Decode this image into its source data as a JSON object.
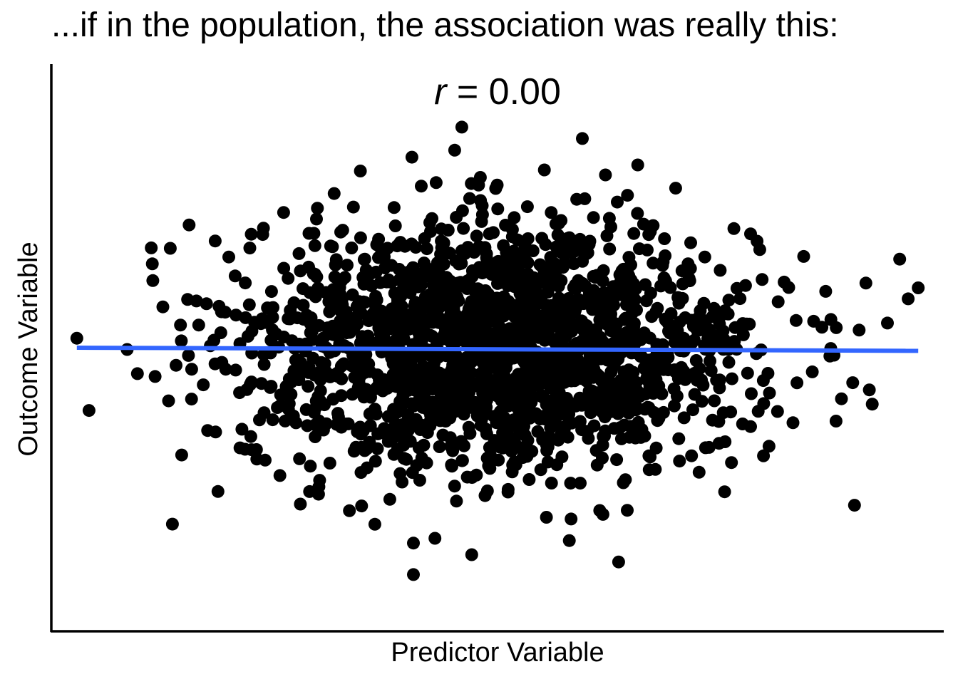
{
  "title": "...if in the population, the association was really this:",
  "chart_data": {
    "type": "scatter",
    "annotation": {
      "variable": "r",
      "text": " = 0.00"
    },
    "xlabel": "Predictor Variable",
    "ylabel": "Outcome Variable",
    "x_ticks": "none",
    "y_ticks": "none",
    "grid": false,
    "legend": "none",
    "n_points": 2000,
    "correlation": 0.0,
    "xlim": [
      -3.5,
      3.5
    ],
    "ylim": [
      -4.5,
      4.5
    ],
    "regression_line": {
      "x": [
        -3.3,
        3.3
      ],
      "y": [
        0.0,
        -0.05
      ]
    },
    "point_color": "#000000",
    "line_color": "#3366ff",
    "sample_points": [
      {
        "x": -0.28,
        "y": 3.5
      },
      {
        "x": -0.66,
        "y": -3.6
      },
      {
        "x": -0.66,
        "y": -3.1
      },
      {
        "x": -3.3,
        "y": 0.15
      },
      {
        "x": 3.3,
        "y": 0.95
      },
      {
        "x": 1.1,
        "y": 2.9
      },
      {
        "x": 0.95,
        "y": -3.4
      },
      {
        "x": -2.55,
        "y": -2.8
      },
      {
        "x": 2.8,
        "y": -2.5
      }
    ]
  }
}
